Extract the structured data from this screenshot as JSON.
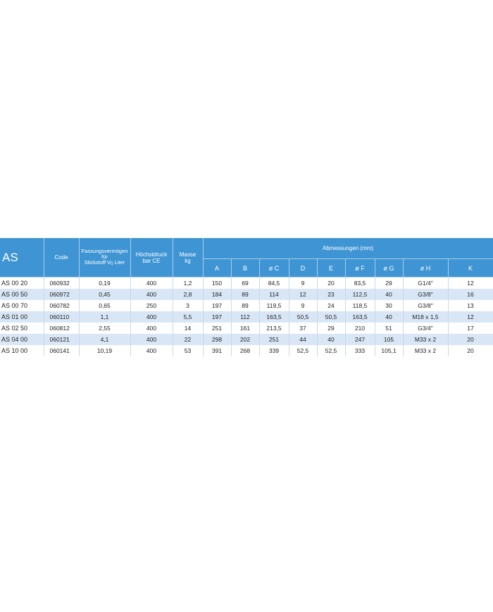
{
  "header": {
    "series": "AS",
    "code": "Code",
    "capacity_line1": "Fassungsvermögen",
    "capacity_line2": "für",
    "capacity_line3_pre": "Stickstoff V",
    "capacity_line3_sub": "0",
    "capacity_line3_post": " Liter",
    "pressure_line1": "Höchstdruck",
    "pressure_line2": "bar CE",
    "mass_line1": "Masse",
    "mass_line2": "kg",
    "dimensions": "Abmessungen (mm)",
    "dim_cols": [
      "A",
      "B",
      "ø C",
      "D",
      "E",
      "ø F",
      "ø G",
      "ø H",
      "K"
    ]
  },
  "rows": [
    {
      "model": "AS 00 20",
      "code": "060932",
      "capacity": "0,19",
      "pressure": "400",
      "mass": "1,2",
      "A": "150",
      "B": "69",
      "C": "84,5",
      "D": "9",
      "E": "20",
      "F": "83,5",
      "G": "29",
      "H": "G1/4\"",
      "K": "12"
    },
    {
      "model": "AS 00 50",
      "code": "060972",
      "capacity": "0,45",
      "pressure": "400",
      "mass": "2,8",
      "A": "184",
      "B": "89",
      "C": "114",
      "D": "12",
      "E": "23",
      "F": "112,5",
      "G": "40",
      "H": "G3/8\"",
      "K": "16"
    },
    {
      "model": "AS 00 70",
      "code": "060782",
      "capacity": "0,65",
      "pressure": "250",
      "mass": "3",
      "A": "197",
      "B": "89",
      "C": "119,5",
      "D": "9",
      "E": "24",
      "F": "118,5",
      "G": "30",
      "H": "G3/8\"",
      "K": "13"
    },
    {
      "model": "AS 01 00",
      "code": "060110",
      "capacity": "1,1",
      "pressure": "400",
      "mass": "5,5",
      "A": "197",
      "B": "112",
      "C": "163,5",
      "D": "50,5",
      "E": "50,5",
      "F": "163,5",
      "G": "40",
      "H": "M18 x 1,5",
      "K": "12"
    },
    {
      "model": "AS 02 50",
      "code": "060812",
      "capacity": "2,55",
      "pressure": "400",
      "mass": "14",
      "A": "251",
      "B": "161",
      "C": "213,5",
      "D": "37",
      "E": "29",
      "F": "210",
      "G": "51",
      "H": "G3/4\"",
      "K": "17"
    },
    {
      "model": "AS 04 00",
      "code": "060121",
      "capacity": "4,1",
      "pressure": "400",
      "mass": "22",
      "A": "298",
      "B": "202",
      "C": "251",
      "D": "44",
      "E": "40",
      "F": "247",
      "G": "105",
      "H": "M33 x 2",
      "K": "20"
    },
    {
      "model": "AS 10 00",
      "code": "060141",
      "capacity": "10,19",
      "pressure": "400",
      "mass": "53",
      "A": "391",
      "B": "268",
      "C": "339",
      "D": "52,5",
      "E": "52,5",
      "F": "333",
      "G": "105,1",
      "H": "M33 x 2",
      "K": "20"
    }
  ],
  "colors": {
    "header_bg": "#3f95d4",
    "stripe": "#d9e6f6"
  }
}
